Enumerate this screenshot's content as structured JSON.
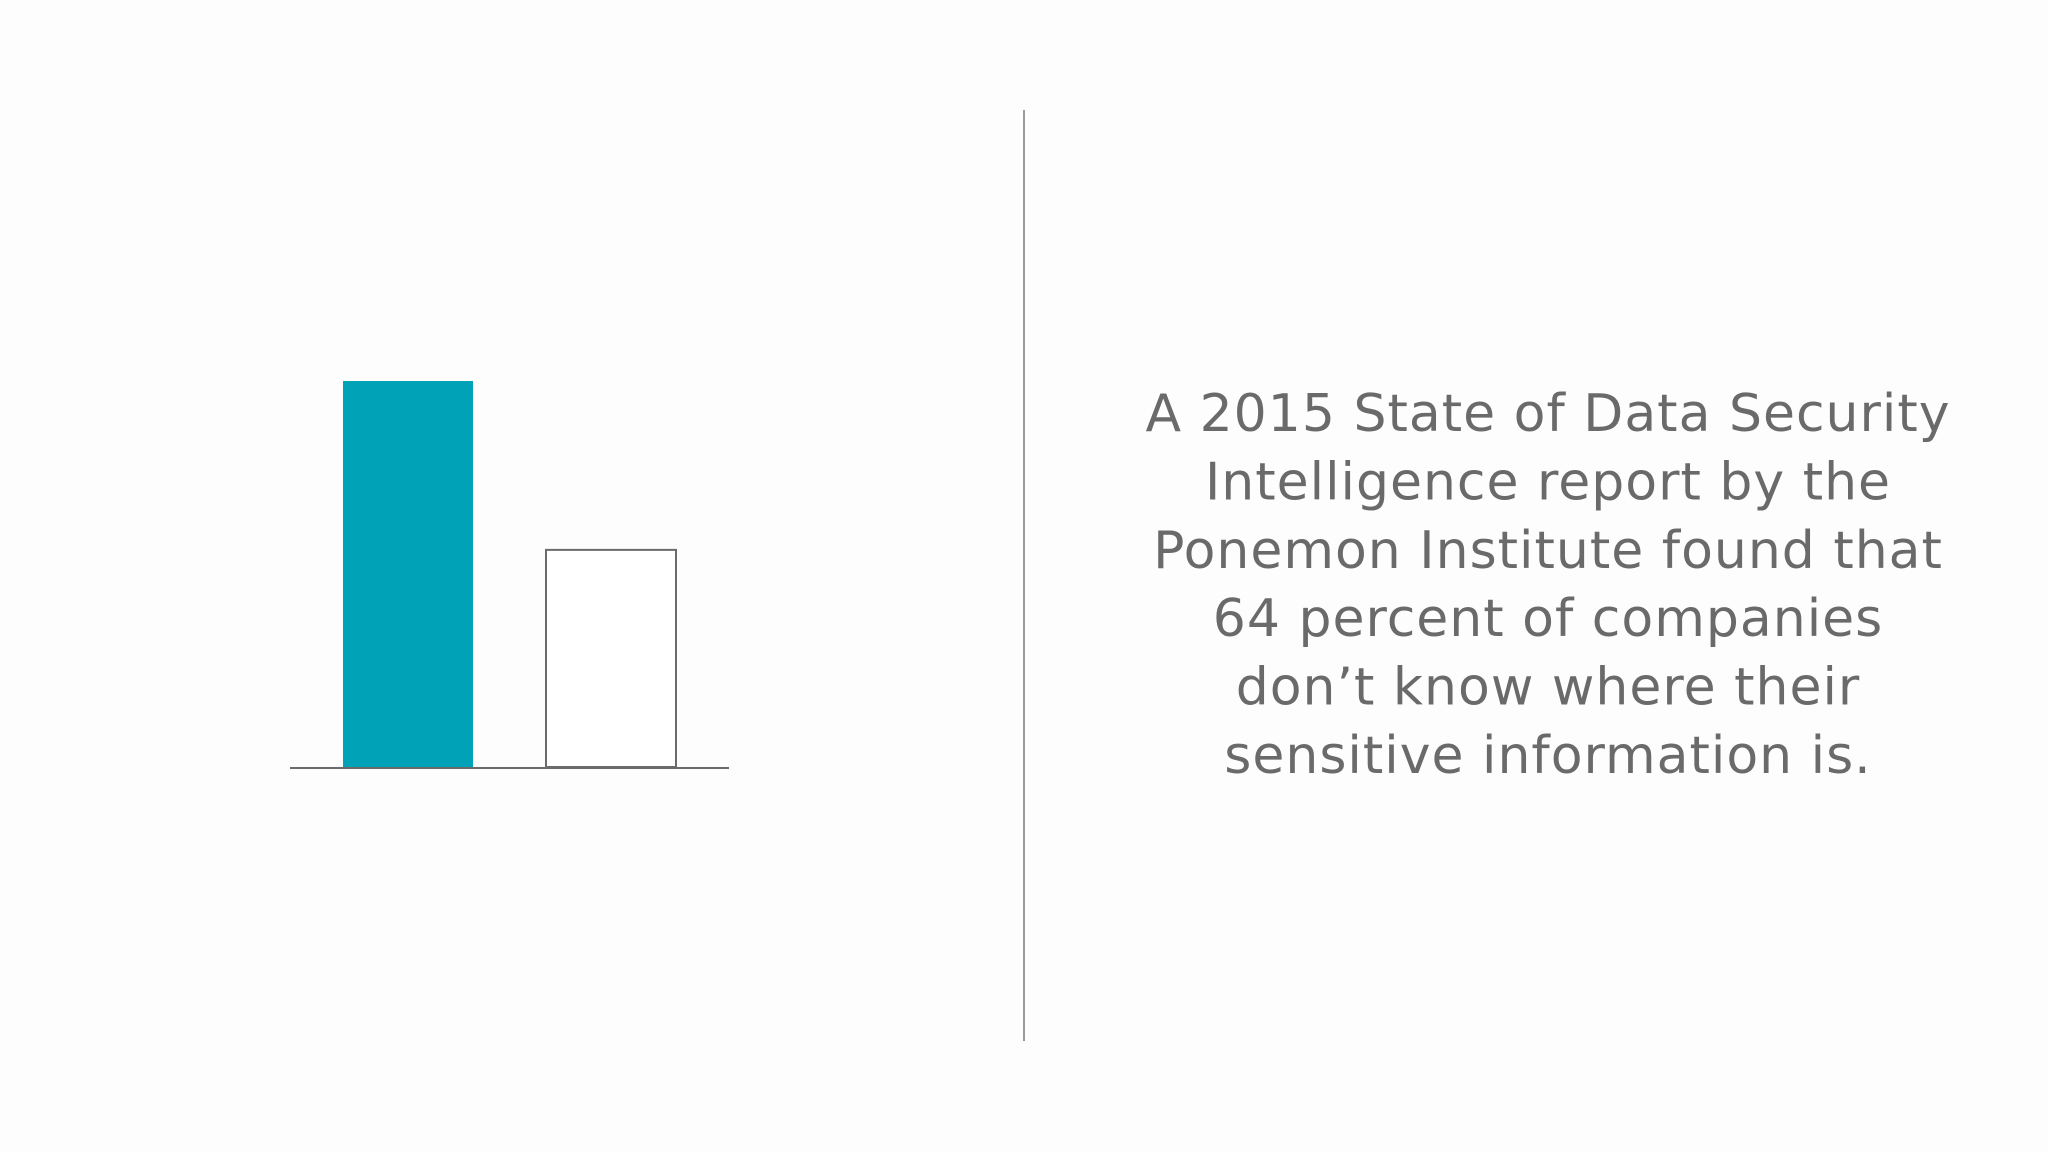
{
  "chart_data": {
    "type": "bar",
    "categories": [
      null,
      null
    ],
    "values": [
      64,
      36
    ],
    "colors": [
      "#00a2b8",
      "#ffffff"
    ],
    "outline_color": "#6b6b6b",
    "ylim": [
      0,
      64
    ]
  },
  "text": {
    "lines": [
      "A 2015 State of Data Security",
      "Intelligence report by the",
      "Ponemon Institute found that",
      "64 percent of companies",
      "don’t know where their",
      "sensitive information is."
    ]
  }
}
